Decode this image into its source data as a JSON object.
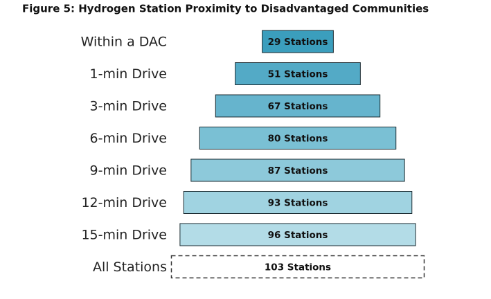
{
  "chart_data": {
    "type": "funnel",
    "title": "Figure 5: Hydrogen Station Proximity to Disadvantaged Communities",
    "categories": [
      "Within a DAC",
      "1-min Drive",
      "3-min Drive",
      "6-min Drive",
      "9-min Drive",
      "12-min Drive",
      "15-min Drive",
      "All Stations"
    ],
    "values": [
      29,
      51,
      67,
      80,
      87,
      93,
      96,
      103
    ],
    "value_labels": [
      "29 Stations",
      "51 Stations",
      "67 Stations",
      "80 Stations",
      "87 Stations",
      "93 Stations",
      "96 Stations",
      "103 Stations"
    ],
    "colors": [
      "#3b9ebd",
      "#53aac6",
      "#66b4cd",
      "#7ac0d4",
      "#8dc9da",
      "#a0d3e1",
      "#b3dce7",
      "#ffffff"
    ],
    "border_styles": [
      "solid",
      "solid",
      "solid",
      "solid",
      "solid",
      "solid",
      "solid",
      "dashed"
    ]
  }
}
